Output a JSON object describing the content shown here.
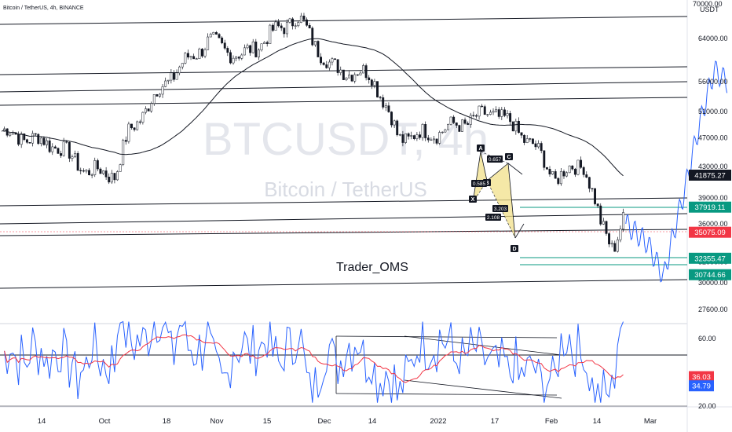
{
  "header": {
    "symbol_line": "Bitcoin / TetherUS, 4h, BINANCE",
    "axis_unit": "USDT"
  },
  "watermark": {
    "ticker": "BTCUSDT, 4h",
    "name": "Bitcoin / TetherUS"
  },
  "author": "Trader_OMS",
  "price_axis": {
    "ticks": [
      "64000.00",
      "56000.00",
      "51000.00",
      "47000.00",
      "43000.00",
      "39000.00",
      "36000.00",
      "32000.00",
      "30000.00",
      "27600.00"
    ],
    "top_partial": "70000.00"
  },
  "price_badges": [
    {
      "value": "41875.27",
      "bg": "#131722",
      "fg": "#ffffff",
      "price": 41875
    },
    {
      "value": "37919.11",
      "bg": "#089981",
      "fg": "#ffffff",
      "price": 37919
    },
    {
      "value": "35075.09",
      "bg": "#f23645",
      "fg": "#ffffff",
      "price": 35075
    },
    {
      "value": "32355.47",
      "bg": "#089981",
      "fg": "#ffffff",
      "price": 32355
    },
    {
      "value": "30744.66",
      "bg": "#089981",
      "fg": "#ffffff",
      "price": 30745
    }
  ],
  "rsi_axis": {
    "ticks": [
      "60.00",
      "20.00"
    ],
    "badges": [
      {
        "value": "36.03",
        "bg": "#f23645",
        "fg": "#ffffff",
        "level": 36.03
      },
      {
        "value": "34.79",
        "bg": "#2962ff",
        "fg": "#ffffff",
        "level": 34.79
      }
    ]
  },
  "time_axis": [
    "14",
    "Oct",
    "18",
    "Nov",
    "15",
    "Dec",
    "14",
    "2022",
    "17",
    "Feb",
    "14",
    "Mar"
  ],
  "pattern_labels": {
    "X": "X",
    "A": "A",
    "B": "B",
    "C": "C",
    "D": "D",
    "r1": "0.585",
    "r2": "0.657",
    "r3": "3.203",
    "r4": "2.108"
  },
  "colors": {
    "candle": "#131722",
    "ma": "#131722",
    "projection": "#2962ff",
    "harmonic_fill": "#f2e08a",
    "rsi": "#2962ff",
    "rsi_ma": "#f23645",
    "support_green": "#089981"
  },
  "chart_data": {
    "type": "candlestick",
    "title": "Bitcoin / TetherUS, 4h, BINANCE",
    "y_unit": "USDT",
    "ylim": [
      27000,
      72000
    ],
    "y_scale": "log",
    "x_ticks": [
      "14",
      "Oct",
      "18",
      "Nov",
      "15",
      "Dec",
      "14",
      "2022",
      "17",
      "Feb",
      "14",
      "Mar"
    ],
    "horizontal_levels": [
      35075.09,
      37919.11,
      32355.47,
      30744.66
    ],
    "last_price": 41875.27,
    "price_path_approx": [
      {
        "t": "Sep 01",
        "price": 48000
      },
      {
        "t": "Sep 07",
        "price": 47000
      },
      {
        "t": "Sep 14",
        "price": 46000
      },
      {
        "t": "Sep 21",
        "price": 42500
      },
      {
        "t": "Sep 28",
        "price": 42000
      },
      {
        "t": "Oct 01",
        "price": 47500
      },
      {
        "t": "Oct 10",
        "price": 56000
      },
      {
        "t": "Oct 20",
        "price": 63500
      },
      {
        "t": "Oct 28",
        "price": 60500
      },
      {
        "t": "Nov 10",
        "price": 68500
      },
      {
        "t": "Nov 18",
        "price": 58500
      },
      {
        "t": "Nov 28",
        "price": 57000
      },
      {
        "t": "Dec 04",
        "price": 47000
      },
      {
        "t": "Dec 14",
        "price": 48000
      },
      {
        "t": "Dec 27",
        "price": 51000
      },
      {
        "t": "Jan 05",
        "price": 46000
      },
      {
        "t": "Jan 10",
        "price": 41500
      },
      {
        "t": "Jan 17",
        "price": 43500
      },
      {
        "t": "Jan 21",
        "price": 36000
      },
      {
        "t": "Jan 24",
        "price": 33500
      },
      {
        "t": "Jan 27",
        "price": 37000
      }
    ],
    "projection_path_approx": [
      {
        "t": "Jan 27",
        "price": 36000
      },
      {
        "t": "Feb 01",
        "price": 34000
      },
      {
        "t": "Feb 05",
        "price": 30500
      },
      {
        "t": "Feb 10",
        "price": 40000
      },
      {
        "t": "Feb 17",
        "price": 58000
      },
      {
        "t": "Feb 20",
        "price": 56000
      }
    ],
    "rsi": {
      "ylim": [
        20,
        70
      ],
      "levels": [
        60,
        20
      ],
      "last_rsi": 34.79,
      "last_rsi_ma": 36.03
    }
  }
}
